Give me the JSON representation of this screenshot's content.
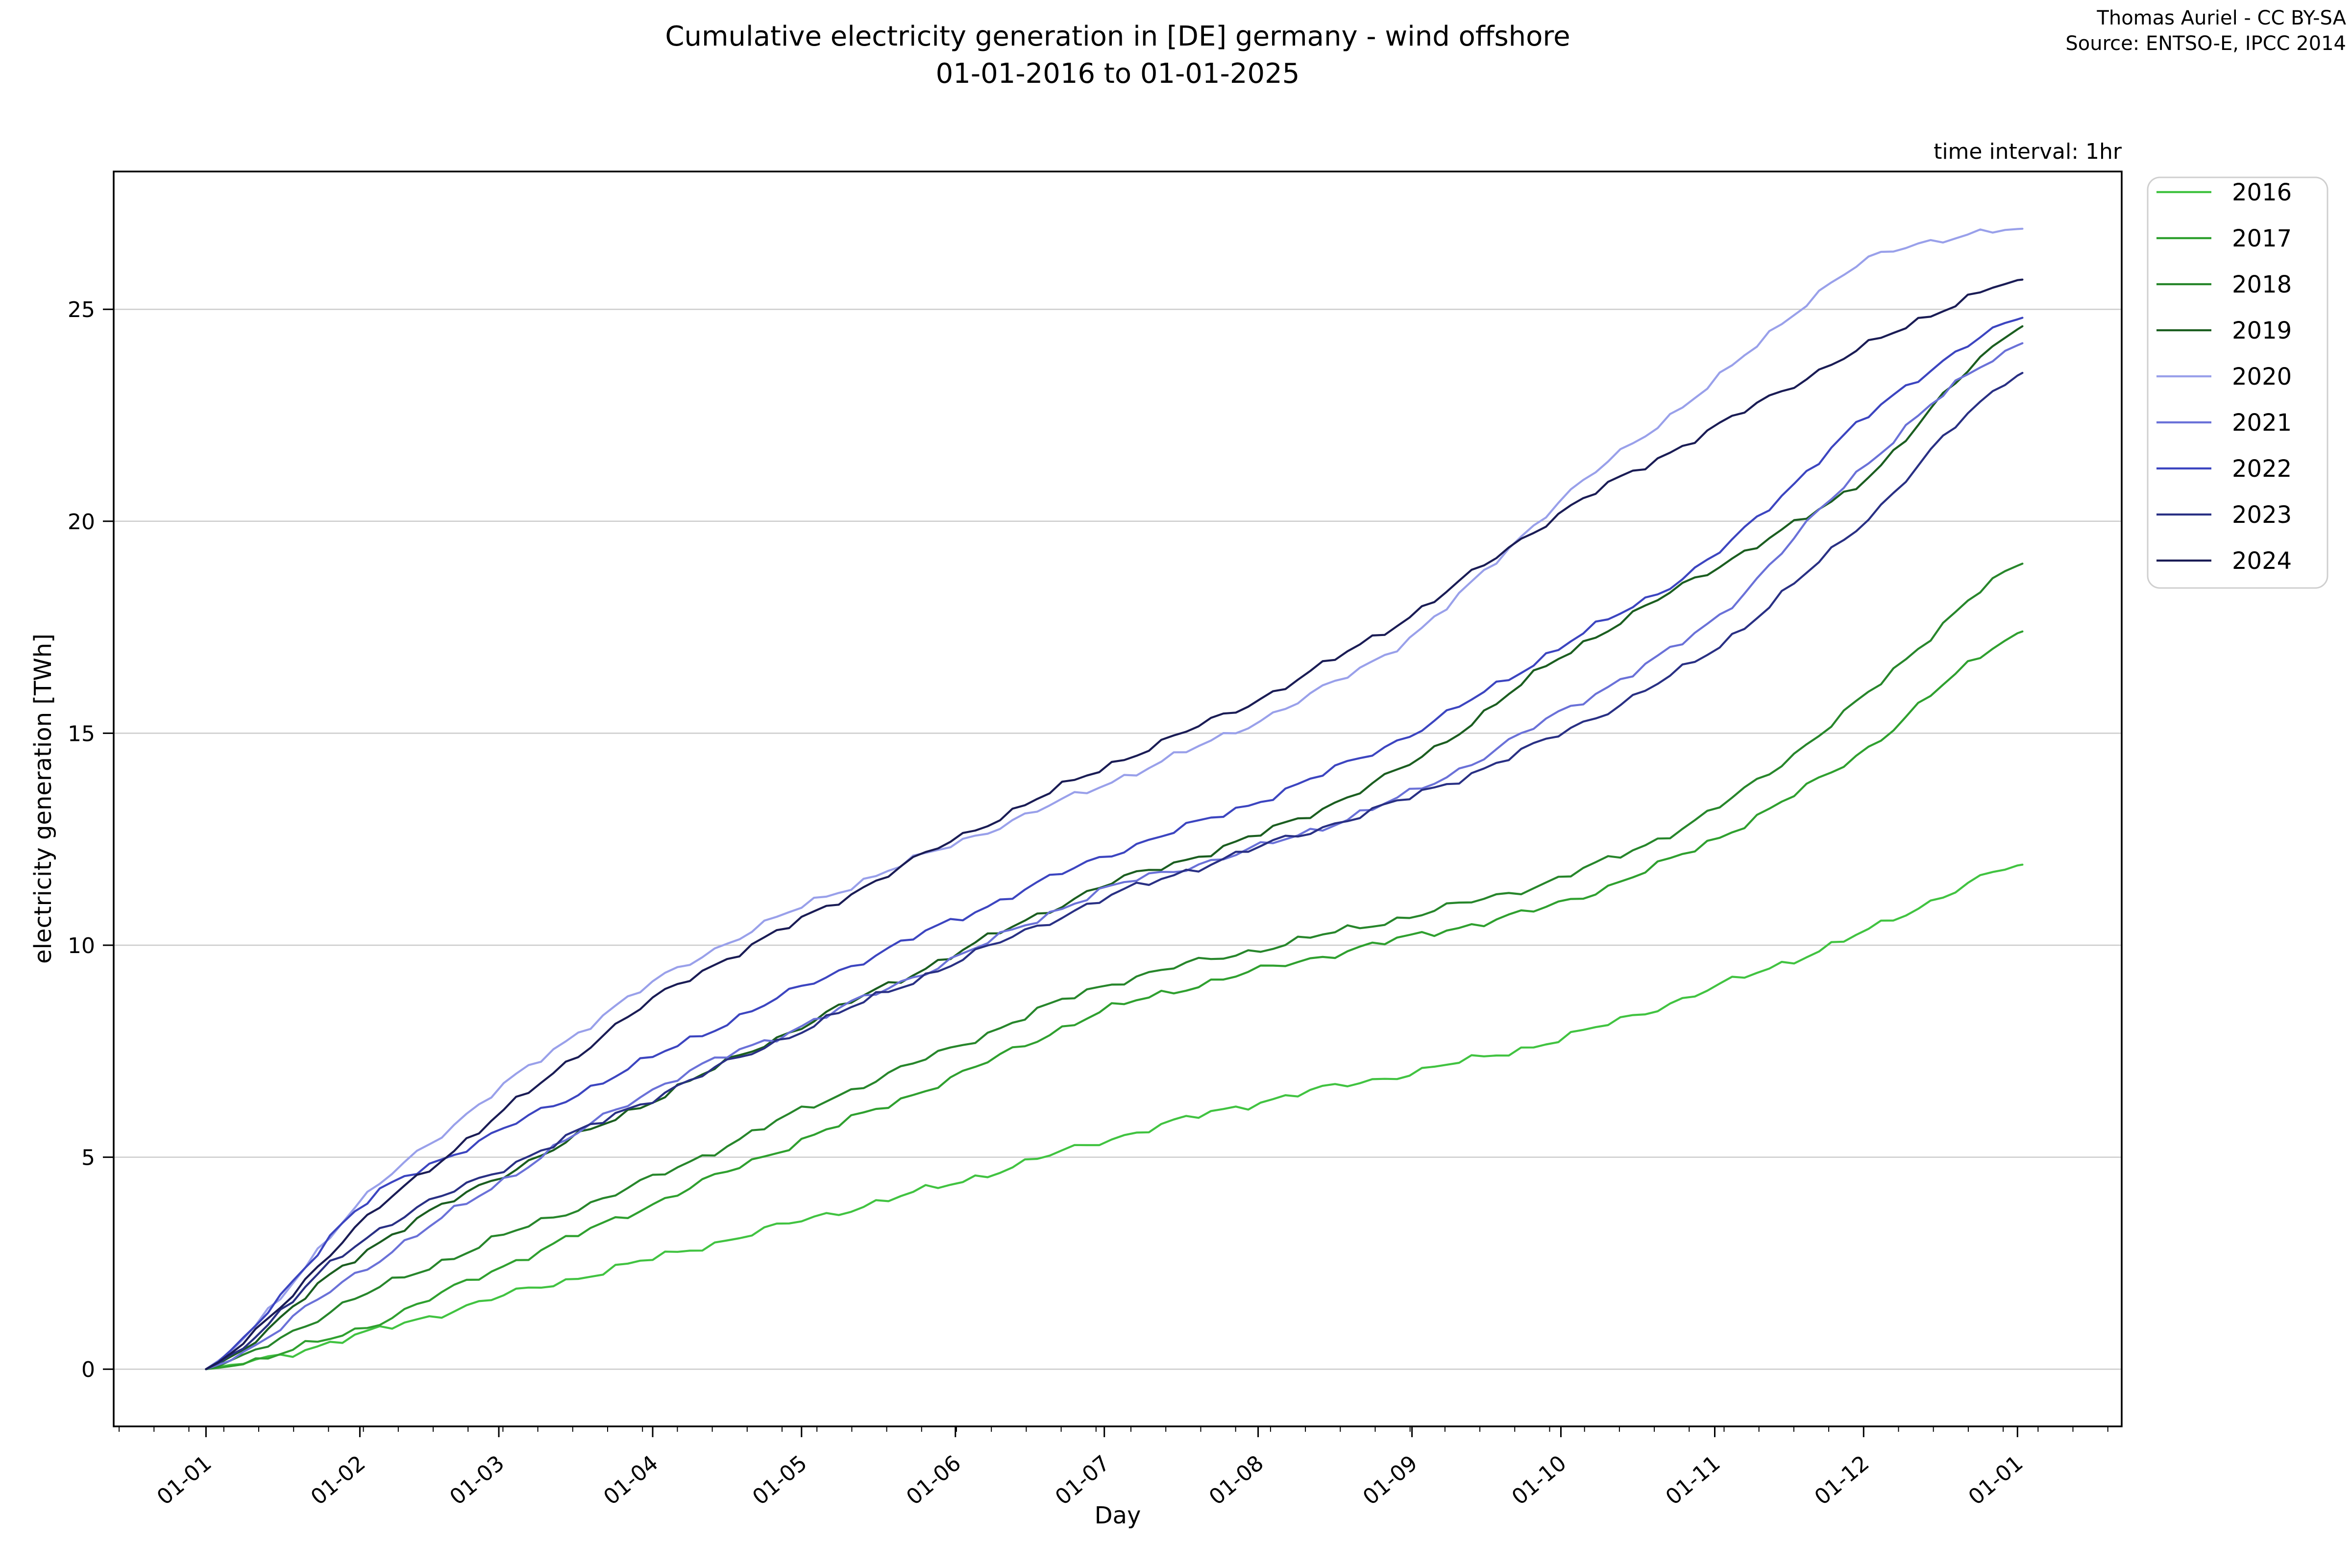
{
  "header": {
    "title_line1": "Cumulative electricity generation in [DE] germany - wind offshore",
    "title_line2": "01-01-2016 to 01-01-2025",
    "attribution_line1": "Thomas Auriel - CC BY-SA",
    "attribution_line2": "Source: ENTSO-E, IPCC 2014",
    "time_interval": "time interval: 1hr"
  },
  "axes": {
    "x_label": "Day",
    "y_label": "electricity generation [TWh]"
  },
  "chart_data": {
    "type": "line",
    "title": "Cumulative electricity generation in [DE] germany - wind offshore 01-01-2016 to 01-01-2025",
    "xlabel": "Day",
    "ylabel": "electricity generation [TWh]",
    "grid": true,
    "legend_position": "right",
    "xlim_days": [
      -18.6,
      386.0
    ],
    "ylim": [
      -1.35,
      28.25
    ],
    "x_anchor_days": [
      0,
      31,
      59,
      90,
      120,
      151,
      181,
      212,
      243,
      273,
      304,
      334,
      366
    ],
    "x_anchor_labels": [
      "01-01",
      "01-02",
      "01-03",
      "01-04",
      "01-05",
      "01-06",
      "01-07",
      "01-08",
      "01-09",
      "01-10",
      "01-11",
      "01-12",
      "01-01"
    ],
    "x_ticks": [
      {
        "day": 0,
        "label": "01-01"
      },
      {
        "day": 31,
        "label": "01-02"
      },
      {
        "day": 59,
        "label": "01-03"
      },
      {
        "day": 90,
        "label": "01-04"
      },
      {
        "day": 120,
        "label": "01-05"
      },
      {
        "day": 151,
        "label": "01-06"
      },
      {
        "day": 181,
        "label": "01-07"
      },
      {
        "day": 212,
        "label": "01-08"
      },
      {
        "day": 243,
        "label": "01-09"
      },
      {
        "day": 273,
        "label": "01-10"
      },
      {
        "day": 304,
        "label": "01-11"
      },
      {
        "day": 334,
        "label": "01-12"
      },
      {
        "day": 365,
        "label": "01-01"
      }
    ],
    "y_ticks": [
      0,
      5,
      10,
      15,
      20,
      25
    ],
    "minor_tick_start_day": -17.5,
    "minor_tick_step_days": 7.03,
    "series": [
      {
        "name": "2016",
        "color": "#41c341",
        "values": [
          0,
          0.8,
          1.7,
          2.6,
          3.5,
          4.4,
          5.4,
          6.3,
          7.0,
          7.8,
          9.0,
          10.3,
          11.9
        ]
      },
      {
        "name": "2017",
        "color": "#2fa02f",
        "values": [
          0,
          0.95,
          2.4,
          3.9,
          5.4,
          6.9,
          8.45,
          9.4,
          10.2,
          11.0,
          12.5,
          14.6,
          17.4
        ]
      },
      {
        "name": "2018",
        "color": "#27862b",
        "values": [
          0,
          1.7,
          3.1,
          4.5,
          6.1,
          7.6,
          9.05,
          9.9,
          10.7,
          11.6,
          13.2,
          15.85,
          19.0
        ]
      },
      {
        "name": "2019",
        "color": "#1b5e20",
        "values": [
          0,
          2.7,
          4.55,
          6.35,
          8.1,
          9.8,
          11.4,
          12.6,
          14.3,
          16.8,
          18.9,
          21.0,
          24.6
        ]
      },
      {
        "name": "2020",
        "color": "#99a0ea",
        "values": [
          0,
          3.9,
          6.6,
          9.1,
          10.9,
          12.4,
          13.8,
          15.3,
          17.3,
          20.5,
          23.3,
          26.1,
          26.9
        ]
      },
      {
        "name": "2021",
        "color": "#6a71d8",
        "values": [
          0,
          2.3,
          4.4,
          6.6,
          8.1,
          9.7,
          11.3,
          12.3,
          13.6,
          15.5,
          17.7,
          21.3,
          24.2
        ]
      },
      {
        "name": "2022",
        "color": "#3c45c0",
        "values": [
          0,
          3.8,
          5.6,
          7.35,
          9.0,
          10.6,
          12.1,
          13.4,
          15.0,
          17.05,
          19.2,
          22.4,
          24.8
        ]
      },
      {
        "name": "2023",
        "color": "#293084",
        "values": [
          0,
          3.0,
          4.7,
          6.4,
          8.0,
          9.6,
          11.1,
          12.3,
          13.5,
          15.0,
          17.0,
          20.0,
          23.5
        ]
      },
      {
        "name": "2024",
        "color": "#1a1c55",
        "values": [
          0,
          3.4,
          6.0,
          8.7,
          10.6,
          12.5,
          14.2,
          15.8,
          17.8,
          20.2,
          22.2,
          24.1,
          25.7
        ]
      }
    ],
    "style": {
      "grid_color": "#cccccc",
      "spine_color": "#000000",
      "background": "#ffffff",
      "line_width": 4.2
    }
  }
}
